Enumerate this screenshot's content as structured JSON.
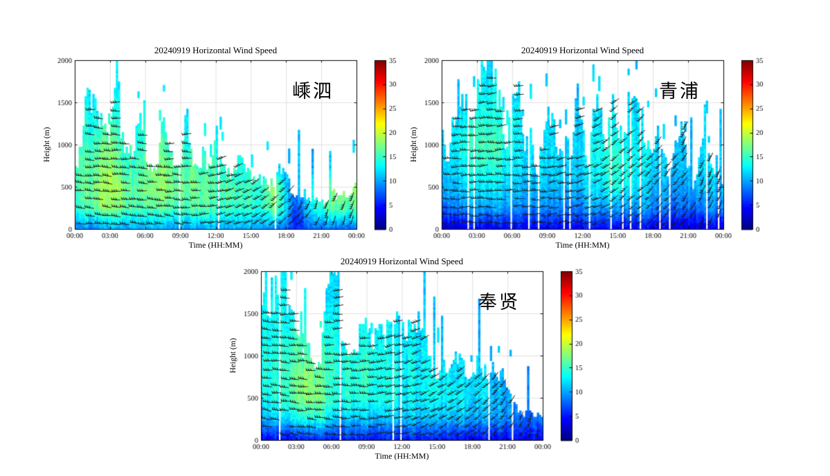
{
  "figure": {
    "background": "#ffffff",
    "text_color": "#000000"
  },
  "chart_data": [
    {
      "type": "heatmap",
      "title": "20240919 Horizontal Wind Speed",
      "station": "嵊泗",
      "xlabel": "Time (HH:MM)",
      "ylabel": "Height (m)",
      "x_ticks": [
        "00:00",
        "03:00",
        "06:00",
        "09:00",
        "12:00",
        "15:00",
        "18:00",
        "21:00",
        "00:00"
      ],
      "y_ticks": [
        0,
        500,
        1000,
        1500,
        2000
      ],
      "xlim_hours": [
        0,
        24
      ],
      "ylim": [
        0,
        2000
      ],
      "grid": true,
      "colorbar": {
        "min": 0,
        "max": 35,
        "ticks": [
          0,
          5,
          10,
          15,
          20,
          25,
          30,
          35
        ],
        "colormap": "jet"
      },
      "seed": 11,
      "envelope_30min_m": [
        700,
        900,
        1500,
        1400,
        1350,
        1200,
        1000,
        1950,
        1100,
        900,
        850,
        1300,
        800,
        750,
        700,
        1400,
        900,
        800,
        750,
        1340,
        800,
        700,
        900,
        700,
        1200,
        800,
        700,
        650,
        820,
        650,
        600,
        580,
        550,
        520,
        500,
        700,
        620,
        420,
        350,
        420,
        300,
        350,
        300,
        330,
        420,
        350,
        400,
        430,
        520
      ],
      "speed_grid": {
        "hours": [
          0,
          1,
          2,
          3,
          4,
          5,
          6,
          7,
          8,
          9,
          10,
          11,
          12,
          13,
          14,
          15,
          16,
          17,
          18,
          19,
          20,
          21,
          22,
          23
        ],
        "heights_m": [
          0,
          250,
          500,
          750,
          1000,
          1250,
          1500,
          1750,
          2000
        ],
        "values": [
          [
            8,
            9,
            9,
            10,
            10,
            10,
            10,
            10,
            10,
            10,
            10,
            10,
            10,
            10,
            10,
            10,
            9,
            9,
            8,
            5,
            8,
            8,
            8,
            8
          ],
          [
            14,
            16,
            17,
            18,
            17,
            16,
            16,
            16,
            16,
            16,
            16,
            16,
            15,
            15,
            15,
            15,
            14,
            18,
            12,
            6,
            13,
            15,
            16,
            16
          ],
          [
            15,
            17,
            18,
            19,
            18,
            16,
            17,
            18,
            18,
            17,
            17,
            16,
            16,
            16,
            15,
            15,
            14,
            19,
            11,
            10,
            14,
            16,
            17,
            18
          ],
          [
            15,
            16,
            17,
            18,
            16,
            15,
            16,
            17,
            17,
            16,
            16,
            15,
            15,
            15,
            14,
            14,
            13,
            12,
            11,
            10,
            10,
            11,
            12,
            13
          ],
          [
            14,
            15,
            16,
            17,
            15,
            14,
            15,
            16,
            15,
            15,
            14,
            14,
            14,
            13,
            13,
            13,
            12,
            12,
            11,
            10,
            10,
            10,
            11,
            12
          ],
          [
            13,
            14,
            14,
            15,
            14,
            13,
            14,
            14,
            14,
            14,
            13,
            13,
            13,
            12,
            12,
            12,
            12,
            11,
            11,
            10,
            10,
            10,
            10,
            11
          ],
          [
            12,
            13,
            13,
            14,
            13,
            12,
            13,
            13,
            13,
            13,
            12,
            12,
            12,
            12,
            12,
            11,
            11,
            11,
            10,
            10,
            10,
            10,
            10,
            10
          ],
          [
            12,
            12,
            12,
            13,
            12,
            12,
            12,
            12,
            12,
            12,
            12,
            11,
            11,
            11,
            11,
            11,
            11,
            10,
            10,
            10,
            10,
            10,
            10,
            10
          ],
          [
            12,
            12,
            12,
            13,
            12,
            12,
            12,
            12,
            12,
            12,
            12,
            11,
            11,
            11,
            11,
            11,
            11,
            10,
            10,
            10,
            10,
            10,
            10,
            10
          ]
        ]
      },
      "barb_angle_keyframes": [
        [
          0,
          -6
        ],
        [
          10,
          -2
        ],
        [
          13,
          18
        ],
        [
          16,
          35
        ],
        [
          19,
          60
        ],
        [
          21,
          72
        ],
        [
          24,
          75
        ]
      ],
      "render_hints": {
        "gap_chance": 0.03,
        "spike_chance": 0.05,
        "blob_chance": 0.09
      }
    },
    {
      "type": "heatmap",
      "title": "20240919 Horizontal Wind Speed",
      "station": "青浦",
      "xlabel": "Time (HH:MM)",
      "ylabel": "Height (m)",
      "x_ticks": [
        "00:00",
        "03:00",
        "06:00",
        "09:00",
        "12:00",
        "15:00",
        "18:00",
        "21:00",
        "00:00"
      ],
      "y_ticks": [
        0,
        500,
        1000,
        1500,
        2000
      ],
      "xlim_hours": [
        0,
        24
      ],
      "ylim": [
        0,
        2000
      ],
      "grid": true,
      "colorbar": {
        "min": 0,
        "max": 35,
        "ticks": [
          0,
          5,
          10,
          15,
          20,
          25,
          30,
          35
        ],
        "colormap": "jet"
      },
      "seed": 22,
      "envelope_30min_m": [
        1200,
        700,
        1300,
        1600,
        1500,
        1490,
        1550,
        1850,
        1999,
        1700,
        1400,
        1000,
        1600,
        1750,
        900,
        1100,
        700,
        900,
        1500,
        1200,
        800,
        1300,
        700,
        1600,
        1100,
        700,
        1400,
        1600,
        900,
        1600,
        1200,
        1000,
        1500,
        1800,
        1300,
        900,
        1000,
        1100,
        800,
        600,
        1000,
        1400,
        700,
        500,
        800,
        1450,
        600,
        800,
        400
      ],
      "speed_grid": {
        "hours": [
          0,
          1,
          2,
          3,
          4,
          5,
          6,
          7,
          8,
          9,
          10,
          11,
          12,
          13,
          14,
          15,
          16,
          17,
          18,
          19,
          20,
          21,
          22,
          23
        ],
        "heights_m": [
          0,
          250,
          500,
          750,
          1000,
          1250,
          1500,
          1750,
          2000
        ],
        "values": [
          [
            3,
            3,
            3,
            4,
            4,
            4,
            4,
            4,
            4,
            4,
            4,
            4,
            4,
            4,
            4,
            4,
            4,
            4,
            3,
            3,
            3,
            3,
            3,
            3
          ],
          [
            8,
            9,
            9,
            10,
            10,
            10,
            9,
            9,
            9,
            9,
            9,
            9,
            9,
            10,
            10,
            10,
            10,
            10,
            9,
            8,
            8,
            8,
            8,
            9
          ],
          [
            11,
            11,
            12,
            12,
            13,
            12,
            11,
            11,
            11,
            11,
            11,
            11,
            11,
            12,
            13,
            14,
            13,
            12,
            11,
            10,
            10,
            10,
            11,
            11
          ],
          [
            12,
            12,
            13,
            14,
            15,
            14,
            12,
            12,
            12,
            12,
            12,
            12,
            12,
            13,
            14,
            15,
            14,
            13,
            12,
            11,
            11,
            11,
            12,
            12
          ],
          [
            12,
            13,
            14,
            15,
            16,
            15,
            13,
            12,
            12,
            12,
            12,
            12,
            12,
            13,
            14,
            14,
            13,
            13,
            12,
            11,
            11,
            11,
            12,
            12
          ],
          [
            12,
            12,
            13,
            14,
            15,
            14,
            13,
            12,
            12,
            12,
            12,
            12,
            12,
            12,
            13,
            13,
            13,
            12,
            12,
            11,
            11,
            11,
            11,
            12
          ],
          [
            12,
            12,
            12,
            13,
            14,
            13,
            12,
            12,
            12,
            12,
            12,
            12,
            12,
            12,
            12,
            12,
            12,
            12,
            11,
            11,
            11,
            11,
            11,
            11
          ],
          [
            11,
            11,
            12,
            12,
            13,
            12,
            12,
            11,
            11,
            11,
            11,
            11,
            11,
            12,
            12,
            12,
            12,
            11,
            11,
            11,
            11,
            11,
            11,
            11
          ],
          [
            11,
            11,
            11,
            12,
            12,
            12,
            11,
            11,
            11,
            11,
            11,
            11,
            11,
            11,
            12,
            12,
            11,
            11,
            11,
            11,
            11,
            11,
            11,
            11
          ]
        ]
      },
      "barb_angle_keyframes": [
        [
          0,
          2
        ],
        [
          8,
          2
        ],
        [
          13,
          25
        ],
        [
          15,
          40
        ],
        [
          18,
          45
        ],
        [
          21,
          58
        ],
        [
          24,
          68
        ]
      ],
      "render_hints": {
        "gap_chance": 0.1,
        "spike_chance": 0.05,
        "blob_chance": 0.12
      }
    },
    {
      "type": "heatmap",
      "title": "20240919 Horizontal Wind Speed",
      "station": "奉贤",
      "xlabel": "Time (HH:MM)",
      "ylabel": "Height (m)",
      "x_ticks": [
        "00:00",
        "03:00",
        "06:00",
        "09:00",
        "12:00",
        "15:00",
        "18:00",
        "21:00",
        "00:00"
      ],
      "y_ticks": [
        0,
        500,
        1000,
        1500,
        2000
      ],
      "xlim_hours": [
        0,
        24
      ],
      "ylim": [
        0,
        2000
      ],
      "grid": true,
      "colorbar": {
        "min": 0,
        "max": 35,
        "ticks": [
          0,
          5,
          10,
          15,
          20,
          25,
          30,
          35
        ],
        "colormap": "jet"
      },
      "seed": 33,
      "envelope_30min_m": [
        1550,
        1600,
        1500,
        2000,
        1900,
        1600,
        1300,
        1100,
        1000,
        950,
        900,
        1500,
        2000,
        2050,
        1200,
        1000,
        1100,
        1300,
        1250,
        1100,
        1300,
        1200,
        1350,
        1500,
        1300,
        1200,
        1450,
        1350,
        1200,
        900,
        800,
        850,
        700,
        900,
        950,
        700,
        850,
        900,
        800,
        850,
        750,
        800,
        700,
        500,
        300,
        300,
        300,
        300,
        300
      ],
      "speed_grid": {
        "hours": [
          0,
          1,
          2,
          3,
          4,
          5,
          6,
          7,
          8,
          9,
          10,
          11,
          12,
          13,
          14,
          15,
          16,
          17,
          18,
          19,
          20,
          21,
          22,
          23
        ],
        "heights_m": [
          0,
          250,
          500,
          750,
          1000,
          1250,
          1500,
          1750,
          2000
        ],
        "values": [
          [
            4,
            4,
            4,
            5,
            5,
            5,
            5,
            5,
            5,
            5,
            5,
            5,
            5,
            5,
            5,
            5,
            5,
            4,
            4,
            4,
            4,
            4,
            4,
            4
          ],
          [
            10,
            11,
            12,
            13,
            14,
            14,
            12,
            11,
            11,
            11,
            11,
            11,
            11,
            11,
            11,
            11,
            11,
            11,
            10,
            10,
            10,
            9,
            8,
            8
          ],
          [
            13,
            14,
            15,
            17,
            18,
            17,
            15,
            14,
            14,
            14,
            14,
            14,
            13,
            13,
            13,
            13,
            13,
            13,
            12,
            12,
            11,
            10,
            9,
            9
          ],
          [
            14,
            14,
            15,
            17,
            18,
            16,
            15,
            14,
            14,
            15,
            14,
            14,
            13,
            13,
            13,
            13,
            13,
            12,
            12,
            12,
            11,
            10,
            9,
            9
          ],
          [
            14,
            14,
            15,
            16,
            16,
            15,
            15,
            14,
            14,
            14,
            14,
            13,
            13,
            13,
            13,
            12,
            12,
            12,
            12,
            11,
            11,
            10,
            9,
            9
          ],
          [
            13,
            13,
            14,
            15,
            15,
            14,
            14,
            13,
            13,
            13,
            13,
            13,
            12,
            12,
            12,
            12,
            12,
            11,
            11,
            11,
            10,
            10,
            9,
            9
          ],
          [
            13,
            13,
            13,
            14,
            14,
            13,
            13,
            13,
            13,
            12,
            12,
            12,
            12,
            12,
            12,
            11,
            11,
            11,
            11,
            10,
            10,
            10,
            9,
            9
          ],
          [
            12,
            12,
            13,
            13,
            13,
            13,
            12,
            12,
            12,
            12,
            12,
            12,
            11,
            11,
            11,
            11,
            11,
            11,
            10,
            10,
            10,
            10,
            9,
            9
          ],
          [
            12,
            12,
            12,
            13,
            13,
            12,
            12,
            12,
            12,
            12,
            11,
            11,
            11,
            11,
            11,
            11,
            11,
            10,
            10,
            10,
            10,
            9,
            9,
            9
          ]
        ]
      },
      "barb_angle_keyframes": [
        [
          0,
          -8
        ],
        [
          8,
          0
        ],
        [
          12,
          15
        ],
        [
          15,
          30
        ],
        [
          18,
          40
        ],
        [
          21,
          55
        ],
        [
          24,
          78
        ]
      ],
      "render_hints": {
        "gap_chance": 0.05,
        "spike_chance": 0.05,
        "blob_chance": 0.08
      }
    }
  ]
}
